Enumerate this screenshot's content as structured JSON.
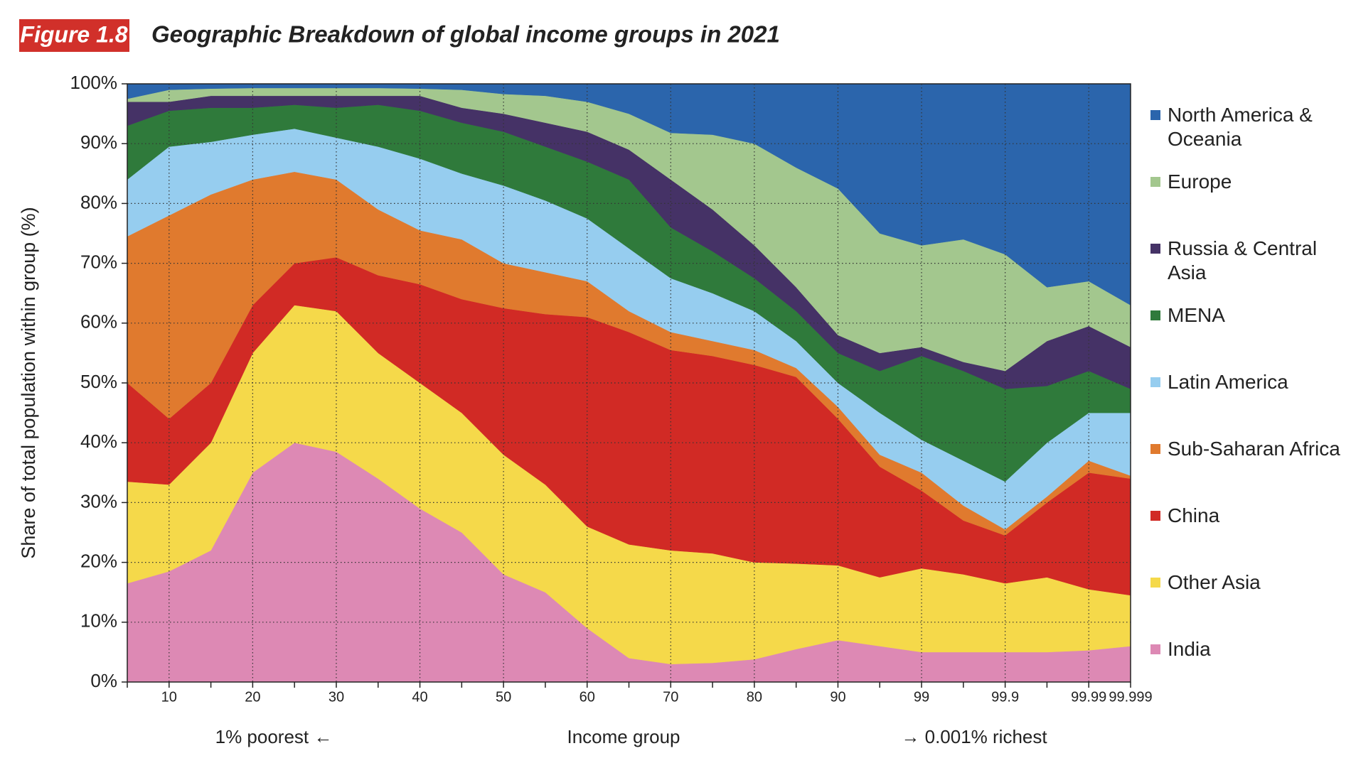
{
  "chart_data": {
    "type": "stacked_area",
    "figure_label": "Figure 1.8",
    "title": "Geographic Breakdown of global income groups in 2021",
    "y_label": "Share of total population within group (%)",
    "x_label": "Income group",
    "annotation_left": "1% poorest ←",
    "annotation_right": "→ 0.001% richest",
    "categories": [
      null,
      "10",
      null,
      "20",
      null,
      "30",
      null,
      "40",
      null,
      "50",
      null,
      "60",
      null,
      "70",
      null,
      "80",
      null,
      "90",
      null,
      "99",
      null,
      "99.9",
      null,
      "99.99",
      "99.999"
    ],
    "ylim": [
      0,
      100
    ],
    "yticks": [
      {
        "value": 0,
        "label": "0%"
      },
      {
        "value": 10,
        "label": "10%"
      },
      {
        "value": 20,
        "label": "20%"
      },
      {
        "value": 30,
        "label": "30%"
      },
      {
        "value": 40,
        "label": "40%"
      },
      {
        "value": 50,
        "label": "50%"
      },
      {
        "value": 60,
        "label": "60%"
      },
      {
        "value": 70,
        "label": "70%"
      },
      {
        "value": 80,
        "label": "80%"
      },
      {
        "value": 90,
        "label": "90%"
      },
      {
        "value": 100,
        "label": "100%"
      }
    ],
    "grid": true,
    "legend": "right",
    "series": [
      {
        "name": "India",
        "color": "#dd89b4",
        "values": [
          16.5,
          18.5,
          22,
          35,
          40,
          38.5,
          34,
          29,
          25,
          18,
          15,
          9,
          4,
          3,
          3.2,
          3.8,
          5.5,
          7,
          6,
          5,
          5,
          5,
          5,
          5.3,
          6
        ]
      },
      {
        "name": "Other Asia",
        "color": "#f5d94a",
        "values": [
          17,
          14.5,
          18,
          20,
          23,
          23.5,
          21,
          21,
          20,
          20,
          18,
          17,
          19,
          19,
          18.3,
          16.2,
          14.3,
          12.5,
          11.5,
          14,
          13,
          11.5,
          12.5,
          10.2,
          8.5
        ]
      },
      {
        "name": "China",
        "color": "#d12a25",
        "values": [
          16.5,
          11,
          10,
          8,
          7,
          9,
          13,
          16.5,
          19,
          24.5,
          28.5,
          35,
          35.5,
          33.5,
          33,
          33,
          31.2,
          24.5,
          18.5,
          13,
          9,
          8,
          12.5,
          19.5,
          19.5
        ]
      },
      {
        "name": "Sub-Saharan Africa",
        "color": "#e07a2e",
        "values": [
          24.5,
          34,
          31.5,
          21,
          15.3,
          13,
          11,
          9,
          10,
          7.5,
          7,
          6,
          3.5,
          3,
          2.5,
          2.5,
          1.5,
          2,
          2,
          3,
          2.5,
          1,
          1,
          2,
          0.5
        ]
      },
      {
        "name": "Latin America",
        "color": "#96cdef",
        "values": [
          9.5,
          11.5,
          8.8,
          7.5,
          7.2,
          7,
          10.5,
          12,
          11,
          13,
          12,
          10.5,
          10.5,
          9,
          8,
          6.5,
          4.5,
          4,
          7,
          5.5,
          7.5,
          8,
          9,
          8,
          10.5
        ]
      },
      {
        "name": "MENA",
        "color": "#2f7a3b",
        "values": [
          9,
          6,
          5.7,
          4.5,
          4,
          5,
          7,
          8,
          8.5,
          9,
          9,
          9.5,
          11.5,
          8.5,
          7,
          5.5,
          5,
          5,
          7,
          14,
          15,
          15.5,
          9.5,
          7,
          4
        ]
      },
      {
        "name": "Russia & Central Asia",
        "color": "#453266",
        "values": [
          4,
          1.5,
          2,
          2,
          1.5,
          2,
          1.5,
          2.5,
          2.5,
          3,
          4,
          5,
          5,
          8,
          7,
          5.5,
          4,
          3,
          3,
          1.5,
          1.5,
          3,
          7.5,
          7.5,
          7
        ]
      },
      {
        "name": "Europe",
        "color": "#a3c78e",
        "values": [
          0.5,
          2,
          1.2,
          1.3,
          1.3,
          1.3,
          1.3,
          1.2,
          3,
          3.3,
          4.5,
          5,
          6,
          7.8,
          12.5,
          17,
          20,
          24.5,
          20,
          17,
          20.5,
          19.5,
          9,
          7.5,
          7
        ]
      },
      {
        "name": "North America & Oceania",
        "color": "#2b65ac",
        "values": [
          2.5,
          1,
          0.8,
          0.7,
          0.7,
          0.7,
          0.7,
          0.8,
          1,
          1.7,
          2,
          3,
          5,
          8.2,
          8.5,
          10,
          14,
          17.5,
          25,
          27,
          26,
          28.5,
          34,
          33,
          37
        ]
      }
    ]
  }
}
